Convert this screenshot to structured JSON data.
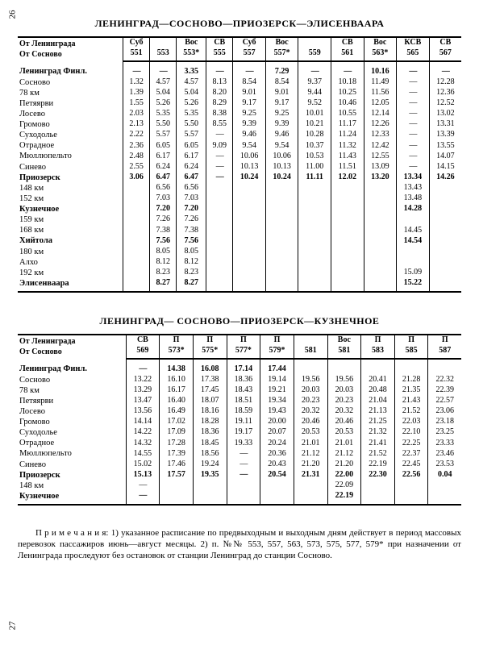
{
  "pageTop": "26",
  "pageBottom": "27",
  "tables": [
    {
      "heading": "ЛЕНИНГРАД—СОСНОВО—ПРИОЗЕРСК—ЭЛИСЕНВААРА",
      "fromLabels": [
        "От Ленинграда",
        "От Сосново"
      ],
      "trains": [
        {
          "type": "Суб",
          "num": "551"
        },
        {
          "type": "",
          "num": "553"
        },
        {
          "type": "Вос",
          "num": "553*"
        },
        {
          "type": "СВ",
          "num": "555"
        },
        {
          "type": "Суб",
          "num": "557"
        },
        {
          "type": "Вос",
          "num": "557*"
        },
        {
          "type": "",
          "num": "559"
        },
        {
          "type": "СВ",
          "num": "561"
        },
        {
          "type": "Вос",
          "num": "563*"
        },
        {
          "type": "КСВ",
          "num": "565"
        },
        {
          "type": "СВ",
          "num": "567"
        }
      ],
      "rows": [
        {
          "s": "Ленинград Финл.",
          "b": true,
          "v": [
            "—",
            "—",
            "3.35",
            "—",
            "—",
            "7.29",
            "—",
            "—",
            "10.16",
            "—",
            "—"
          ]
        },
        {
          "s": "Сосново",
          "v": [
            "1.32",
            "4.57",
            "4.57",
            "8.13",
            "8.54",
            "8.54",
            "9.37",
            "10.18",
            "11.49",
            "—",
            "12.28"
          ]
        },
        {
          "s": "78 км",
          "v": [
            "1.39",
            "5.04",
            "5.04",
            "8.20",
            "9.01",
            "9.01",
            "9.44",
            "10.25",
            "11.56",
            "—",
            "12.36"
          ]
        },
        {
          "s": "Петяярви",
          "v": [
            "1.55",
            "5.26",
            "5.26",
            "8.29",
            "9.17",
            "9.17",
            "9.52",
            "10.46",
            "12.05",
            "—",
            "12.52"
          ]
        },
        {
          "s": "Лосево",
          "v": [
            "2.03",
            "5.35",
            "5.35",
            "8.38",
            "9.25",
            "9.25",
            "10.01",
            "10.55",
            "12.14",
            "—",
            "13.02"
          ]
        },
        {
          "s": "Громово",
          "v": [
            "2.13",
            "5.50",
            "5.50",
            "8.55",
            "9.39",
            "9.39",
            "10.21",
            "11.17",
            "12.26",
            "—",
            "13.31"
          ]
        },
        {
          "s": "Суходолье",
          "v": [
            "2.22",
            "5.57",
            "5.57",
            "—",
            "9.46",
            "9.46",
            "10.28",
            "11.24",
            "12.33",
            "—",
            "13.39"
          ]
        },
        {
          "s": "Отрадное",
          "v": [
            "2.36",
            "6.05",
            "6.05",
            "9.09",
            "9.54",
            "9.54",
            "10.37",
            "11.32",
            "12.42",
            "—",
            "13.55"
          ]
        },
        {
          "s": "Мюллюпельто",
          "v": [
            "2.48",
            "6.17",
            "6.17",
            "—",
            "10.06",
            "10.06",
            "10.53",
            "11.43",
            "12.55",
            "—",
            "14.07"
          ]
        },
        {
          "s": "Синево",
          "v": [
            "2.55",
            "6.24",
            "6.24",
            "—",
            "10.13",
            "10.13",
            "11.00",
            "11.51",
            "13.09",
            "—",
            "14.15"
          ]
        },
        {
          "s": "Приозерск",
          "b": true,
          "v": [
            "3.06",
            "6.47",
            "6.47",
            "—",
            "10.24",
            "10.24",
            "11.11",
            "12.02",
            "13.20",
            "13.34",
            "14.26"
          ]
        },
        {
          "s": "148 км",
          "v": [
            "",
            "6.56",
            "6.56",
            "",
            "",
            "",
            "",
            "",
            "",
            "13.43",
            ""
          ]
        },
        {
          "s": "152 км",
          "v": [
            "",
            "7.03",
            "7.03",
            "",
            "",
            "",
            "",
            "",
            "",
            "13.48",
            ""
          ]
        },
        {
          "s": "Кузнечное",
          "b": true,
          "v": [
            "",
            "7.20",
            "7.20",
            "",
            "",
            "",
            "",
            "",
            "",
            "14.28",
            ""
          ]
        },
        {
          "s": "159 км",
          "v": [
            "",
            "7.26",
            "7.26",
            "",
            "",
            "",
            "",
            "",
            "",
            "",
            ""
          ]
        },
        {
          "s": "168 км",
          "v": [
            "",
            "7.38",
            "7.38",
            "",
            "",
            "",
            "",
            "",
            "",
            "14.45",
            ""
          ]
        },
        {
          "s": "Хийтола",
          "b": true,
          "v": [
            "",
            "7.56",
            "7.56",
            "",
            "",
            "",
            "",
            "",
            "",
            "14.54",
            ""
          ]
        },
        {
          "s": "180 км",
          "v": [
            "",
            "8.05",
            "8.05",
            "",
            "",
            "",
            "",
            "",
            "",
            "",
            ""
          ]
        },
        {
          "s": "Алхо",
          "v": [
            "",
            "8.12",
            "8.12",
            "",
            "",
            "",
            "",
            "",
            "",
            "",
            ""
          ]
        },
        {
          "s": "192 км",
          "v": [
            "",
            "8.23",
            "8.23",
            "",
            "",
            "",
            "",
            "",
            "",
            "15.09",
            ""
          ]
        },
        {
          "s": "Элисенваара",
          "b": true,
          "v": [
            "",
            "8.27",
            "8.27",
            "",
            "",
            "",
            "",
            "",
            "",
            "15.22",
            ""
          ]
        }
      ]
    },
    {
      "heading": "ЛЕНИНГРАД— СОСНОВО—ПРИОЗЕРСК—КУЗНЕЧНОЕ",
      "fromLabels": [
        "От Ленинграда",
        "От Сосново"
      ],
      "trains": [
        {
          "type": "СВ",
          "num": "569"
        },
        {
          "type": "П",
          "num": "573*"
        },
        {
          "type": "П",
          "num": "575*"
        },
        {
          "type": "П",
          "num": "577*"
        },
        {
          "type": "П",
          "num": "579*"
        },
        {
          "type": "",
          "num": "581"
        },
        {
          "type": "Вос",
          "num": "581"
        },
        {
          "type": "П",
          "num": "583"
        },
        {
          "type": "П",
          "num": "585"
        },
        {
          "type": "П",
          "num": "587"
        }
      ],
      "rows": [
        {
          "s": "Ленинград Финл.",
          "b": true,
          "v": [
            "—",
            "14.38",
            "16.08",
            "17.14",
            "17.44",
            "",
            "",
            "",
            "",
            ""
          ]
        },
        {
          "s": "Сосново",
          "v": [
            "13.22",
            "16.10",
            "17.38",
            "18.36",
            "19.14",
            "19.56",
            "19.56",
            "20.41",
            "21.28",
            "22.32"
          ]
        },
        {
          "s": "78 км",
          "v": [
            "13.29",
            "16.17",
            "17.45",
            "18.43",
            "19.21",
            "20.03",
            "20.03",
            "20.48",
            "21.35",
            "22.39"
          ]
        },
        {
          "s": "Петяярви",
          "v": [
            "13.47",
            "16.40",
            "18.07",
            "18.51",
            "19.34",
            "20.23",
            "20.23",
            "21.04",
            "21.43",
            "22.57"
          ]
        },
        {
          "s": "Лосево",
          "v": [
            "13.56",
            "16.49",
            "18.16",
            "18.59",
            "19.43",
            "20.32",
            "20.32",
            "21.13",
            "21.52",
            "23.06"
          ]
        },
        {
          "s": "Громово",
          "v": [
            "14.14",
            "17.02",
            "18.28",
            "19.11",
            "20.00",
            "20.46",
            "20.46",
            "21.25",
            "22.03",
            "23.18"
          ]
        },
        {
          "s": "Суходолье",
          "v": [
            "14.22",
            "17.09",
            "18.36",
            "19.17",
            "20.07",
            "20.53",
            "20.53",
            "21.32",
            "22.10",
            "23.25"
          ]
        },
        {
          "s": "Отрадное",
          "v": [
            "14.32",
            "17.28",
            "18.45",
            "19.33",
            "20.24",
            "21.01",
            "21.01",
            "21.41",
            "22.25",
            "23.33"
          ]
        },
        {
          "s": "Мюллюпельто",
          "v": [
            "14.55",
            "17.39",
            "18.56",
            "—",
            "20.36",
            "21.12",
            "21.12",
            "21.52",
            "22.37",
            "23.46"
          ]
        },
        {
          "s": "Синево",
          "v": [
            "15.02",
            "17.46",
            "19.24",
            "—",
            "20.43",
            "21.20",
            "21.20",
            "22.19",
            "22.45",
            "23.53"
          ]
        },
        {
          "s": "Приозерск",
          "b": true,
          "v": [
            "15.13",
            "17.57",
            "19.35",
            "—",
            "20.54",
            "21.31",
            "22.00",
            "22.30",
            "22.56",
            "0.04"
          ]
        },
        {
          "s": "148 км",
          "v": [
            "—",
            "",
            "",
            "",
            "",
            "",
            "22.09",
            "",
            "",
            ""
          ]
        },
        {
          "s": "Кузнечное",
          "b": true,
          "v": [
            "—",
            "",
            "",
            "",
            "",
            "",
            "22.19",
            "",
            "",
            ""
          ]
        }
      ]
    }
  ],
  "notes": "П р и м е ч а н и я: 1) указанное расписание по предвыходным и выходным дням действует в период массовых перевозок пассажиров июнь—август месяцы. 2) п. №№ 553, 557, 563, 573, 575, 577, 579* при назначении от Ленинграда проследуют без остановок от станции Ленинград до станции Сосново."
}
